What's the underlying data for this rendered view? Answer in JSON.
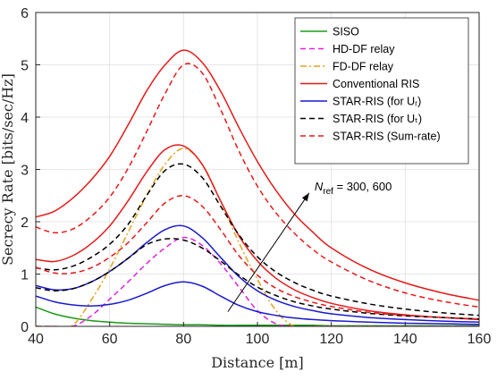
{
  "chart_data": {
    "type": "line",
    "xlabel": "Distance [m]",
    "ylabel": "Secrecy Rate [bits/sec/Hz]",
    "xlim": [
      40,
      160
    ],
    "ylim": [
      0,
      6
    ],
    "xticks": [
      40,
      60,
      80,
      100,
      120,
      140,
      160
    ],
    "yticks": [
      0,
      1,
      2,
      3,
      4,
      5,
      6
    ],
    "grid": true,
    "legend_position": "top-right",
    "x": [
      40,
      45,
      50,
      55,
      60,
      65,
      70,
      75,
      80,
      85,
      90,
      95,
      100,
      105,
      110,
      115,
      120,
      130,
      140,
      150,
      160
    ],
    "series": [
      {
        "name": "SISO",
        "color": "#1a9a1a",
        "dash": "solid",
        "groups": [
          [
            0.37,
            0.24,
            0.16,
            0.11,
            0.08,
            0.06,
            0.05,
            0.04,
            0.03,
            0.03,
            0.02,
            0.02,
            0.02,
            0.02,
            0.02,
            0.02,
            0.01,
            0.01,
            0.01,
            0.01,
            0.01
          ]
        ]
      },
      {
        "name": "HD-DF relay",
        "color": "#e020e0",
        "dash": "dashed",
        "groups": [
          [
            0,
            0,
            0,
            0.2,
            0.52,
            0.85,
            1.2,
            1.5,
            1.7,
            1.55,
            1.2,
            0.75,
            0.3,
            0.05,
            0,
            0,
            0,
            0,
            0,
            0,
            0
          ]
        ]
      },
      {
        "name": "FD-DF relay",
        "color": "#e3a21a",
        "dash": "dashdot",
        "groups": [
          [
            0,
            0,
            0.02,
            0.5,
            1.1,
            1.8,
            2.5,
            3.1,
            3.4,
            3.1,
            2.4,
            1.6,
            0.9,
            0.3,
            0,
            0,
            0,
            0,
            0,
            0,
            0
          ]
        ]
      },
      {
        "name": "Conventional RIS",
        "color": "#e41a1a",
        "dash": "solid",
        "groups": [
          [
            1.28,
            1.24,
            1.35,
            1.58,
            1.92,
            2.4,
            2.95,
            3.38,
            3.45,
            3.1,
            2.4,
            1.73,
            1.25,
            0.92,
            0.7,
            0.55,
            0.44,
            0.3,
            0.22,
            0.17,
            0.13
          ],
          [
            2.09,
            2.2,
            2.45,
            2.8,
            3.25,
            3.85,
            4.5,
            5.0,
            5.28,
            5.05,
            4.5,
            3.8,
            3.15,
            2.6,
            2.15,
            1.8,
            1.5,
            1.1,
            0.83,
            0.64,
            0.5
          ]
        ]
      },
      {
        "name": "STAR-RIS (for Uᵣ)",
        "color": "#1a1acf",
        "dash": "solid",
        "groups": [
          [
            0.58,
            0.47,
            0.41,
            0.39,
            0.42,
            0.5,
            0.63,
            0.78,
            0.85,
            0.77,
            0.58,
            0.4,
            0.28,
            0.21,
            0.16,
            0.13,
            0.11,
            0.08,
            0.06,
            0.05,
            0.04
          ],
          [
            0.78,
            0.7,
            0.72,
            0.85,
            1.05,
            1.3,
            1.6,
            1.85,
            1.92,
            1.7,
            1.32,
            0.95,
            0.68,
            0.5,
            0.38,
            0.3,
            0.24,
            0.17,
            0.13,
            0.1,
            0.08
          ]
        ]
      },
      {
        "name": "STAR-RIS (for Uₜ)",
        "color": "#000000",
        "dash": "dashed",
        "groups": [
          [
            0.74,
            0.68,
            0.72,
            0.85,
            1.05,
            1.3,
            1.56,
            1.67,
            1.65,
            1.5,
            1.25,
            0.98,
            0.75,
            0.59,
            0.47,
            0.39,
            0.33,
            0.25,
            0.2,
            0.17,
            0.14
          ],
          [
            1.12,
            1.08,
            1.15,
            1.32,
            1.57,
            1.95,
            2.5,
            2.98,
            3.1,
            2.85,
            2.3,
            1.75,
            1.33,
            1.04,
            0.84,
            0.69,
            0.58,
            0.43,
            0.33,
            0.26,
            0.21
          ]
        ]
      },
      {
        "name": "STAR-RIS (Sum-rate)",
        "color": "#e41a1a",
        "dash": "dashed",
        "groups": [
          [
            1.13,
            1.02,
            1.02,
            1.12,
            1.32,
            1.6,
            1.98,
            2.36,
            2.5,
            2.3,
            1.85,
            1.35,
            0.98,
            0.73,
            0.57,
            0.46,
            0.38,
            0.27,
            0.21,
            0.17,
            0.14
          ],
          [
            1.9,
            1.79,
            1.86,
            2.1,
            2.47,
            3.02,
            3.72,
            4.45,
            5.0,
            4.85,
            4.15,
            3.35,
            2.68,
            2.17,
            1.78,
            1.47,
            1.23,
            0.88,
            0.64,
            0.48,
            0.37
          ]
        ]
      }
    ],
    "annotation": {
      "text": "N",
      "subscript": "ref",
      "suffix": " = 300, 600",
      "arrow_from": [
        92,
        0.28
      ],
      "arrow_to": [
        114,
        2.55
      ]
    }
  }
}
